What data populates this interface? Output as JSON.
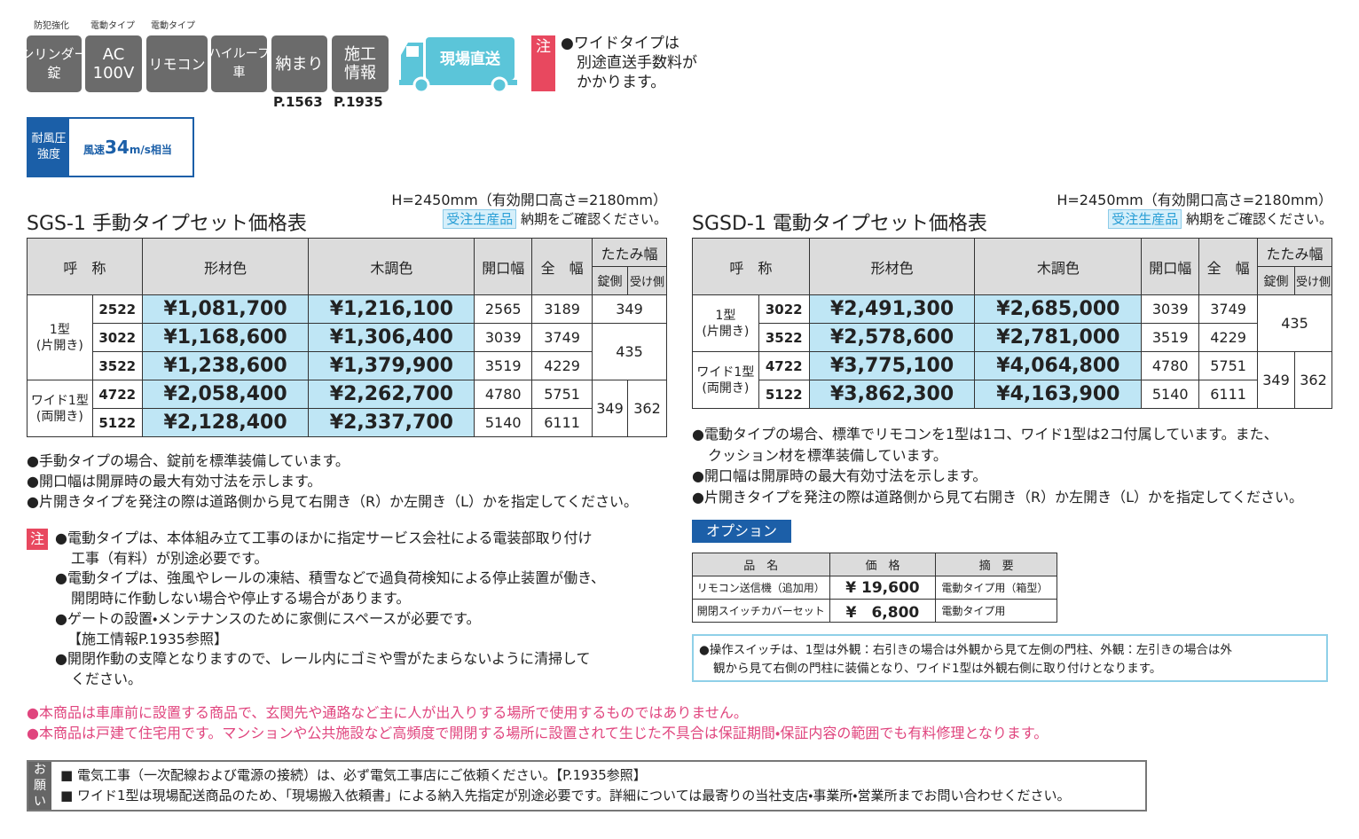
{
  "badges": [
    {
      "caption": "防犯強化",
      "lines": [
        "シリンダー",
        "錠"
      ]
    },
    {
      "caption": "電動タイプ",
      "lines": [
        "AC",
        "100V"
      ]
    },
    {
      "caption": "電動タイプ",
      "lines": [
        "リモコン"
      ]
    },
    {
      "lines": [
        "ハイルーフ",
        "車"
      ]
    },
    {
      "lines": [
        "納まり"
      ],
      "page": "P.1563"
    },
    {
      "lines": [
        "施工",
        "情報"
      ],
      "page": "P.1935"
    }
  ],
  "truck": "現場直送",
  "top_note": {
    "mark": "注",
    "lines": [
      "●ワイドタイプは",
      "別途直送手数料が",
      "かかります。"
    ]
  },
  "wind": {
    "label": [
      "耐風圧",
      "強度"
    ],
    "prefix": "風速",
    "value": "34",
    "suffix": "m/s相当"
  },
  "left": {
    "height_note": "H=2450mm（有効開口高さ=2180mm）",
    "title": "SGS-1 手動タイプセット価格表",
    "tag": "受注生産品",
    "tag_note": "納期をご確認ください。",
    "headers": [
      "呼　称",
      "形材色",
      "木調色",
      "開口幅",
      "全　幅",
      "たたみ幅",
      "錠側",
      "受け側"
    ],
    "groups": [
      {
        "name": [
          "1型",
          "(片開き)"
        ],
        "rows": [
          {
            "code": "2522",
            "shape": "¥1,081,700",
            "wood": "¥1,216,100",
            "open": "2565",
            "full": "3189"
          },
          {
            "code": "3022",
            "shape": "¥1,168,600",
            "wood": "¥1,306,400",
            "open": "3039",
            "full": "3749"
          },
          {
            "code": "3522",
            "shape": "¥1,238,600",
            "wood": "¥1,379,900",
            "open": "3519",
            "full": "4229"
          }
        ]
      },
      {
        "name": [
          "ワイド1型",
          "(両開き)"
        ],
        "rows": [
          {
            "code": "4722",
            "shape": "¥2,058,400",
            "wood": "¥2,262,700",
            "open": "4780",
            "full": "5751"
          },
          {
            "code": "5122",
            "shape": "¥2,128,400",
            "wood": "¥2,337,700",
            "open": "5140",
            "full": "6111"
          }
        ]
      }
    ],
    "folds": [
      "349",
      "435",
      "349",
      "362"
    ],
    "notes": [
      "●手動タイプの場合、錠前を標準装備しています。",
      "●開口幅は開扉時の最大有効寸法を示します。",
      "●片開きタイプを発注の際は道路側から見て右開き（R）か左開き（L）かを指定してください。"
    ]
  },
  "caution": {
    "mark": "注",
    "items": [
      [
        "●電動タイプは、本体組み立て工事のほかに指定サービス会社による電装部取り付け",
        "工事（有料）が別途必要です。"
      ],
      [
        "●電動タイプは、強風やレールの凍結、積雪などで過負荷検知による停止装置が働き、",
        "開閉時に作動しない場合や停止する場合があります。"
      ],
      [
        "●ゲートの設置・メンテナンスのために家側にスペースが必要です。",
        "【施工情報P.1935参照】"
      ],
      [
        "●開閉作動の支障となりますので、レール内にゴミや雪がたまらないように清掃して",
        "ください。"
      ]
    ]
  },
  "right": {
    "height_note": "H=2450mm（有効開口高さ=2180mm）",
    "title": "SGSD-1 電動タイプセット価格表",
    "tag": "受注生産品",
    "tag_note": "納期をご確認ください。",
    "headers": [
      "呼　称",
      "形材色",
      "木調色",
      "開口幅",
      "全　幅",
      "たたみ幅",
      "錠側",
      "受け側"
    ],
    "groups": [
      {
        "name": [
          "1型",
          "(片開き)"
        ],
        "rows": [
          {
            "code": "3022",
            "shape": "¥2,491,300",
            "wood": "¥2,685,000",
            "open": "3039",
            "full": "3749"
          },
          {
            "code": "3522",
            "shape": "¥2,578,600",
            "wood": "¥2,781,000",
            "open": "3519",
            "full": "4229"
          }
        ]
      },
      {
        "name": [
          "ワイド1型",
          "(両開き)"
        ],
        "rows": [
          {
            "code": "4722",
            "shape": "¥3,775,100",
            "wood": "¥4,064,800",
            "open": "4780",
            "full": "5751"
          },
          {
            "code": "5122",
            "shape": "¥3,862,300",
            "wood": "¥4,163,900",
            "open": "5140",
            "full": "6111"
          }
        ]
      }
    ],
    "folds": [
      "435",
      "349",
      "362"
    ],
    "notes": [
      [
        "●電動タイプの場合、標準でリモコンを1型は1コ、ワイド1型は2コ付属しています。また、",
        "クッション材を標準装備しています。"
      ],
      [
        "●開口幅は開扉時の最大有効寸法を示します。"
      ],
      [
        "●片開きタイプを発注の際は道路側から見て右開き（R）か左開き（L）かを指定してください。"
      ]
    ]
  },
  "options": {
    "title": "オプション",
    "headers": [
      "品　名",
      "価　格",
      "摘　要"
    ],
    "rows": [
      [
        "リモコン送信機（追加用）",
        "¥ 19,600",
        "電動タイプ用（箱型）"
      ],
      [
        "開閉スイッチカバーセット",
        "¥　6,800",
        "電動タイプ用"
      ]
    ],
    "note": [
      "●操作スイッチは、1型は外観：右引きの場合は外観から見て左側の門柱、外観：左引きの場合は外",
      "観から見て右側の門柱に装備となり、ワイド1型は外観右側に取り付けとなります。"
    ]
  },
  "pink_notes": [
    "●本商品は車庫前に設置する商品で、玄関先や通路など主に人が出入りする場所で使用するものではありません。",
    "●本商品は戸建て住宅用です。マンションや公共施設など高頻度で開閉する場所に設置されて生じた不具合は保証期間・保証内容の範囲でも有料修理となります。"
  ],
  "request": {
    "mark": [
      "お",
      "願",
      "い"
    ],
    "lines": [
      "■ 電気工事（一次配線および電源の接続）は、必ず電気工事店にご依頼ください。【P.1935参照】",
      "■ ワイド1型は現場配送商品のため、「現場搬入依頼書」による納入先指定が別途必要です。詳細については最寄りの当社支店・事業所・営業所までお問い合わせください。"
    ]
  }
}
